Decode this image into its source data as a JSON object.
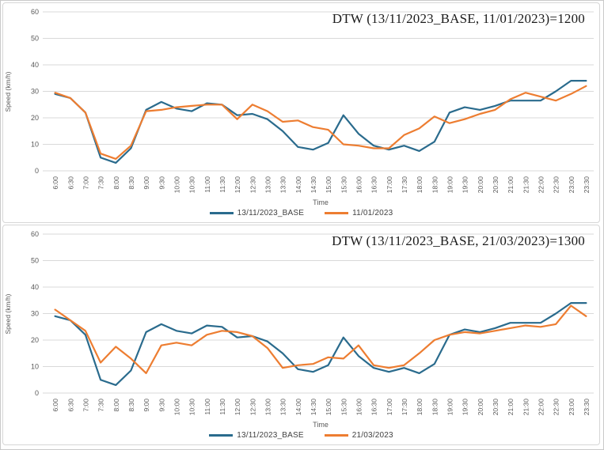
{
  "colors": {
    "base_series": "#2a6b8d",
    "compare_series": "#ed7d31",
    "gridline": "#d9d9d9",
    "tick_text": "#595959",
    "title_text": "#1b1b1b",
    "legend_text": "#404040"
  },
  "chart_data": [
    {
      "type": "line",
      "title": "DTW (13/11/2023_BASE, 11/01/2023)=1200",
      "xlabel": "Time",
      "ylabel": "Speed (km/h)",
      "ylim": [
        0,
        60
      ],
      "yticks": [
        0,
        10,
        20,
        30,
        40,
        50,
        60
      ],
      "grid": "horizontal",
      "legend_position": "bottom",
      "categories": [
        "6:00",
        "6:30",
        "7:00",
        "7:30",
        "8:00",
        "8:30",
        "9:00",
        "9:30",
        "10:00",
        "10:30",
        "11:00",
        "11:30",
        "12:00",
        "12:30",
        "13:00",
        "13:30",
        "14:00",
        "14:30",
        "15:00",
        "15:30",
        "16:00",
        "16:30",
        "17:00",
        "17:30",
        "18:00",
        "18:30",
        "19:00",
        "19:30",
        "20:00",
        "20:30",
        "21:00",
        "21:30",
        "22:00",
        "22:30",
        "23:00",
        "23:30"
      ],
      "series": [
        {
          "name": "13/11/2023_BASE",
          "color": "#2a6b8d",
          "values": [
            29,
            27.5,
            22,
            5,
            3,
            8.5,
            23,
            26,
            23.5,
            22.5,
            25.5,
            25,
            21,
            21.5,
            19.5,
            15,
            9,
            8,
            10.5,
            21,
            14,
            9.5,
            8,
            9.5,
            7.5,
            11,
            22,
            24,
            23,
            24.5,
            26.5,
            26.5,
            26.5,
            30,
            34,
            34
          ]
        },
        {
          "name": "11/01/2023",
          "color": "#ed7d31",
          "values": [
            29.5,
            27.5,
            22,
            6.5,
            4.5,
            9.5,
            22.5,
            23,
            24,
            24.5,
            25,
            25,
            19.5,
            25,
            22.5,
            18.5,
            19,
            16.5,
            15.5,
            10,
            9.5,
            8.5,
            8.5,
            13.5,
            16,
            20.5,
            18,
            19.5,
            21.5,
            23,
            27,
            29.5,
            28,
            26.5,
            29,
            32
          ]
        }
      ]
    },
    {
      "type": "line",
      "title": "DTW (13/11/2023_BASE, 21/03/2023)=1300",
      "xlabel": "Time",
      "ylabel": "Speed (km/h)",
      "ylim": [
        0,
        60
      ],
      "yticks": [
        0,
        10,
        20,
        30,
        40,
        50,
        60
      ],
      "grid": "horizontal",
      "legend_position": "bottom",
      "categories": [
        "6:00",
        "6:30",
        "7:00",
        "7:30",
        "8:00",
        "8:30",
        "9:00",
        "9:30",
        "10:00",
        "10:30",
        "11:00",
        "11:30",
        "12:00",
        "12:30",
        "13:00",
        "13:30",
        "14:00",
        "14:30",
        "15:00",
        "15:30",
        "16:00",
        "16:30",
        "17:00",
        "17:30",
        "18:00",
        "18:30",
        "19:00",
        "19:30",
        "20:00",
        "20:30",
        "21:00",
        "21:30",
        "22:00",
        "22:30",
        "23:00",
        "23:30"
      ],
      "series": [
        {
          "name": "13/11/2023_BASE",
          "color": "#2a6b8d",
          "values": [
            29,
            27.5,
            22,
            5,
            3,
            8.5,
            23,
            26,
            23.5,
            22.5,
            25.5,
            25,
            21,
            21.5,
            19.5,
            15,
            9,
            8,
            10.5,
            21,
            14,
            9.5,
            8,
            9.5,
            7.5,
            11,
            22,
            24,
            23,
            24.5,
            26.5,
            26.5,
            26.5,
            30,
            34,
            34
          ]
        },
        {
          "name": "21/03/2023",
          "color": "#ed7d31",
          "values": [
            31.5,
            27.5,
            23.5,
            11.5,
            17.5,
            13,
            7.5,
            18,
            19,
            18,
            22,
            23.5,
            23,
            21.5,
            17,
            9.5,
            10.5,
            11,
            13.5,
            13,
            18,
            10.5,
            9.5,
            10.5,
            15,
            20,
            22,
            23,
            22.5,
            23.5,
            24.5,
            25.5,
            25,
            26,
            33,
            29
          ]
        }
      ]
    }
  ]
}
